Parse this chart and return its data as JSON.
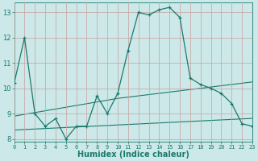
{
  "x": [
    0,
    1,
    2,
    3,
    4,
    5,
    6,
    7,
    8,
    9,
    10,
    11,
    12,
    13,
    14,
    15,
    16,
    17,
    18,
    19,
    20,
    21,
    22,
    23
  ],
  "y_main": [
    10.2,
    12.0,
    9.0,
    8.5,
    8.8,
    8.0,
    8.5,
    8.5,
    9.7,
    9.0,
    9.8,
    11.5,
    13.0,
    12.9,
    13.1,
    13.2,
    12.8,
    10.4,
    10.15,
    10.0,
    9.8,
    9.4,
    8.6,
    8.5
  ],
  "y_trend1": [
    8.9,
    8.97,
    9.04,
    9.11,
    9.18,
    9.25,
    9.32,
    9.39,
    9.46,
    9.53,
    9.6,
    9.65,
    9.7,
    9.75,
    9.8,
    9.85,
    9.9,
    9.95,
    10.0,
    10.05,
    10.1,
    10.15,
    10.2,
    10.25
  ],
  "y_trend2": [
    8.35,
    8.37,
    8.39,
    8.41,
    8.43,
    8.45,
    8.47,
    8.49,
    8.51,
    8.53,
    8.55,
    8.57,
    8.59,
    8.61,
    8.63,
    8.65,
    8.67,
    8.69,
    8.71,
    8.73,
    8.75,
    8.77,
    8.79,
    8.81
  ],
  "line_color": "#1a7a6e",
  "bg_color": "#cce8e8",
  "grid_color": "#b0d8d8",
  "xlabel": "Humidex (Indice chaleur)",
  "xlim": [
    0,
    23
  ],
  "ylim": [
    7.9,
    13.4
  ],
  "yticks": [
    8,
    9,
    10,
    11,
    12,
    13
  ],
  "xticks": [
    0,
    1,
    2,
    3,
    4,
    5,
    6,
    7,
    8,
    9,
    10,
    11,
    12,
    13,
    14,
    15,
    16,
    17,
    18,
    19,
    20,
    21,
    22,
    23
  ],
  "xlabel_fontsize": 7,
  "tick_fontsize": 6
}
